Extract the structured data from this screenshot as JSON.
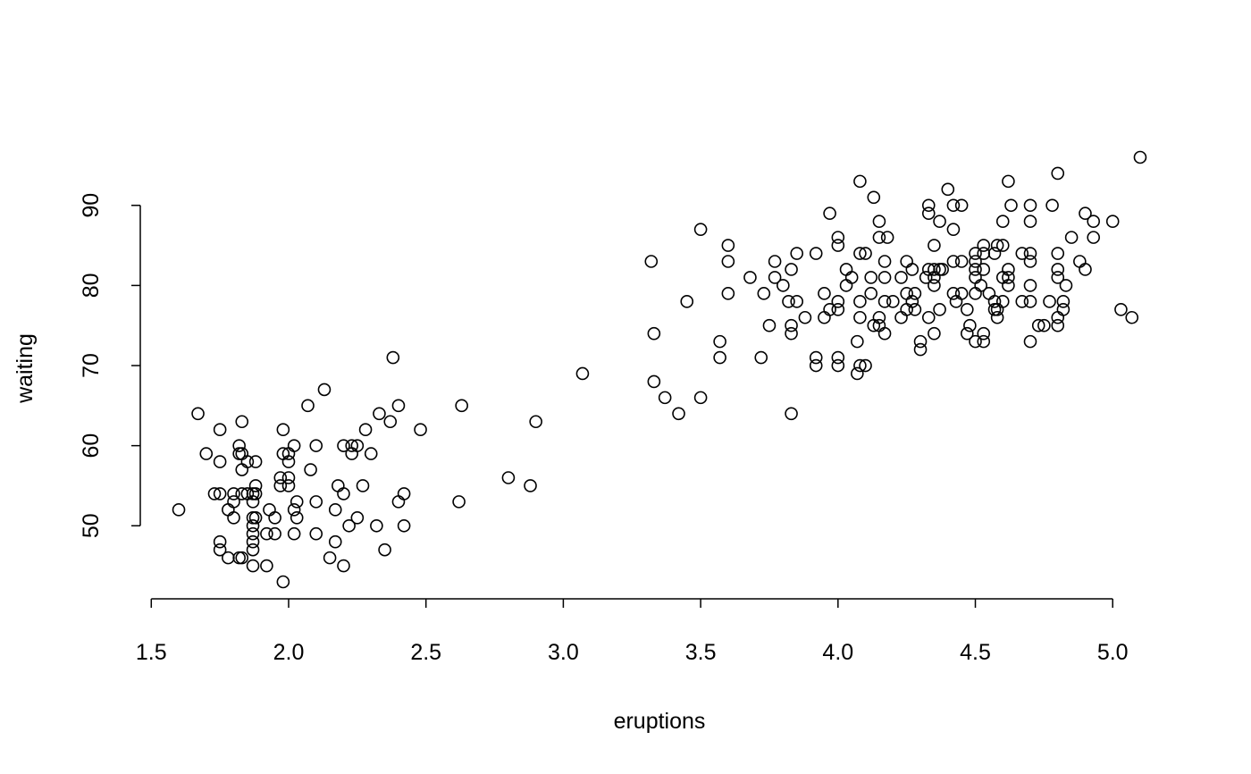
{
  "chart_data": {
    "type": "scatter",
    "xlabel": "eruptions",
    "ylabel": "waiting",
    "xlim": [
      1.46,
      5.24
    ],
    "ylim": [
      40.88,
      98.12
    ],
    "xticks": [
      {
        "value": 1.5,
        "label": "1.5"
      },
      {
        "value": 2.0,
        "label": "2.0"
      },
      {
        "value": 2.5,
        "label": "2.5"
      },
      {
        "value": 3.0,
        "label": "3.0"
      },
      {
        "value": 3.5,
        "label": "3.5"
      },
      {
        "value": 4.0,
        "label": "4.0"
      },
      {
        "value": 4.5,
        "label": "4.5"
      },
      {
        "value": 5.0,
        "label": "5.0"
      }
    ],
    "yticks": [
      50,
      60,
      70,
      80,
      90
    ],
    "color": "#000000",
    "x": [
      1.6,
      1.67,
      1.7,
      1.73,
      1.75,
      1.75,
      1.75,
      1.75,
      1.75,
      1.78,
      1.78,
      1.8,
      1.8,
      1.8,
      1.82,
      1.82,
      1.82,
      1.83,
      1.83,
      1.83,
      1.83,
      1.83,
      1.85,
      1.85,
      1.87,
      1.87,
      1.87,
      1.87,
      1.87,
      1.87,
      1.87,
      1.87,
      1.88,
      1.88,
      1.88,
      1.88,
      1.92,
      1.92,
      1.93,
      1.95,
      1.95,
      1.97,
      1.97,
      1.98,
      1.98,
      1.98,
      2.0,
      2.0,
      2.0,
      2.0,
      2.02,
      2.02,
      2.02,
      2.03,
      2.03,
      2.07,
      2.08,
      2.1,
      2.1,
      2.1,
      2.13,
      2.15,
      2.17,
      2.17,
      2.18,
      2.2,
      2.2,
      2.2,
      2.22,
      2.23,
      2.23,
      2.25,
      2.25,
      2.27,
      2.28,
      2.3,
      2.32,
      2.33,
      2.35,
      2.37,
      2.38,
      2.4,
      2.4,
      2.42,
      2.42,
      2.48,
      2.62,
      2.63,
      2.8,
      2.88,
      2.9,
      3.07,
      3.32,
      3.33,
      3.33,
      3.37,
      3.42,
      3.45,
      3.5,
      3.5,
      3.57,
      3.57,
      3.6,
      3.6,
      3.6,
      3.68,
      3.72,
      3.73,
      3.75,
      3.77,
      3.77,
      3.8,
      3.82,
      3.83,
      3.83,
      3.83,
      3.83,
      3.85,
      3.85,
      3.88,
      3.92,
      3.92,
      3.92,
      3.95,
      3.95,
      3.97,
      3.97,
      4.0,
      4.0,
      4.0,
      4.0,
      4.0,
      4.0,
      4.03,
      4.03,
      4.05,
      4.07,
      4.07,
      4.08,
      4.08,
      4.08,
      4.08,
      4.08,
      4.1,
      4.1,
      4.12,
      4.12,
      4.13,
      4.13,
      4.15,
      4.15,
      4.15,
      4.15,
      4.17,
      4.17,
      4.17,
      4.17,
      4.18,
      4.2,
      4.23,
      4.23,
      4.25,
      4.25,
      4.25,
      4.27,
      4.27,
      4.28,
      4.28,
      4.3,
      4.3,
      4.32,
      4.33,
      4.33,
      4.33,
      4.33,
      4.35,
      4.35,
      4.35,
      4.35,
      4.35,
      4.37,
      4.37,
      4.37,
      4.38,
      4.4,
      4.42,
      4.42,
      4.42,
      4.42,
      4.43,
      4.45,
      4.45,
      4.45,
      4.47,
      4.47,
      4.48,
      4.5,
      4.5,
      4.5,
      4.5,
      4.5,
      4.5,
      4.52,
      4.53,
      4.53,
      4.53,
      4.53,
      4.53,
      4.55,
      4.57,
      4.57,
      4.57,
      4.58,
      4.58,
      4.58,
      4.6,
      4.6,
      4.6,
      4.6,
      4.62,
      4.62,
      4.62,
      4.62,
      4.63,
      4.67,
      4.67,
      4.7,
      4.7,
      4.7,
      4.7,
      4.7,
      4.7,
      4.7,
      4.73,
      4.75,
      4.77,
      4.78,
      4.8,
      4.8,
      4.8,
      4.8,
      4.8,
      4.8,
      4.82,
      4.82,
      4.83,
      4.85,
      4.88,
      4.9,
      4.9,
      4.93,
      4.93,
      5.0,
      5.03,
      5.07,
      5.1
    ],
    "values": [
      52,
      64,
      59,
      54,
      54,
      62,
      58,
      48,
      47,
      46,
      52,
      54,
      53,
      51,
      60,
      59,
      46,
      63,
      57,
      54,
      46,
      59,
      58,
      54,
      53,
      51,
      50,
      49,
      48,
      47,
      45,
      54,
      58,
      55,
      54,
      51,
      49,
      45,
      52,
      49,
      51,
      56,
      55,
      62,
      59,
      43,
      59,
      58,
      56,
      55,
      60,
      52,
      49,
      53,
      51,
      65,
      57,
      60,
      53,
      49,
      67,
      46,
      52,
      48,
      55,
      60,
      54,
      45,
      50,
      60,
      59,
      60,
      51,
      55,
      62,
      59,
      50,
      64,
      47,
      63,
      71,
      65,
      53,
      54,
      50,
      62,
      53,
      65,
      56,
      55,
      63,
      69,
      83,
      74,
      68,
      66,
      64,
      78,
      87,
      66,
      73,
      71,
      85,
      83,
      79,
      81,
      71,
      79,
      75,
      83,
      81,
      80,
      78,
      82,
      75,
      74,
      64,
      84,
      78,
      76,
      84,
      71,
      70,
      79,
      76,
      89,
      77,
      86,
      85,
      78,
      77,
      71,
      70,
      82,
      80,
      81,
      73,
      69,
      93,
      84,
      78,
      76,
      70,
      84,
      70,
      81,
      79,
      91,
      75,
      88,
      86,
      76,
      75,
      83,
      81,
      78,
      74,
      86,
      78,
      81,
      76,
      83,
      79,
      77,
      82,
      78,
      79,
      77,
      73,
      72,
      81,
      90,
      89,
      82,
      76,
      85,
      82,
      81,
      80,
      74,
      88,
      82,
      77,
      82,
      92,
      90,
      87,
      83,
      79,
      78,
      90,
      83,
      79,
      77,
      74,
      75,
      84,
      83,
      82,
      81,
      79,
      73,
      80,
      85,
      84,
      82,
      74,
      73,
      79,
      84,
      78,
      77,
      85,
      77,
      76,
      88,
      85,
      81,
      78,
      93,
      82,
      81,
      80,
      90,
      84,
      78,
      90,
      88,
      84,
      83,
      80,
      78,
      73,
      75,
      75,
      78,
      90,
      94,
      84,
      82,
      81,
      76,
      75,
      78,
      77,
      80,
      86,
      83,
      89,
      82,
      88,
      86,
      88,
      77,
      76,
      96
    ]
  }
}
